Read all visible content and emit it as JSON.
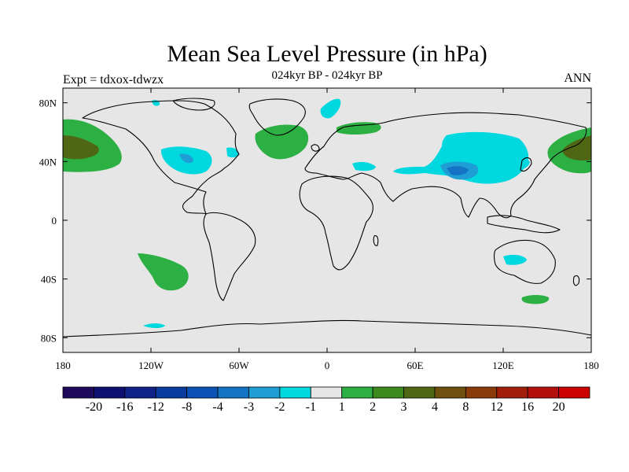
{
  "title": "Mean Sea Level Pressure (in hPa)",
  "subtitle": "024kyr BP - 024kyr BP",
  "left_label": "Expt = tdxox-tdwzx",
  "right_label": "ANN",
  "x_ticks": [
    "180",
    "120W",
    "60W",
    "0",
    "60E",
    "120E",
    "180"
  ],
  "y_ticks": [
    "80N",
    "40N",
    "0",
    "40S",
    "80S"
  ],
  "colorbar": {
    "colors": [
      "#1e0a5c",
      "#0c1070",
      "#0f2288",
      "#0a3ca0",
      "#0a52b4",
      "#1473c4",
      "#1e9ed4",
      "#00d8e0",
      "#e6e6e6",
      "#2db043",
      "#3c8a1e",
      "#4f6614",
      "#6e5010",
      "#8c3c0a",
      "#a01e0a",
      "#b40f0a",
      "#cc0000"
    ],
    "labels": [
      "-20",
      "-16",
      "-12",
      "-8",
      "-4",
      "-3",
      "-2",
      "-1",
      "1",
      "2",
      "3",
      "4",
      "8",
      "12",
      "16",
      "20"
    ]
  },
  "field_colors": {
    "background": "#e6e6e6",
    "neg1": "#00d8e0",
    "neg2": "#1e9ed4",
    "neg3": "#1473c4",
    "pos1": "#2db043",
    "pos2": "#4f6614"
  }
}
